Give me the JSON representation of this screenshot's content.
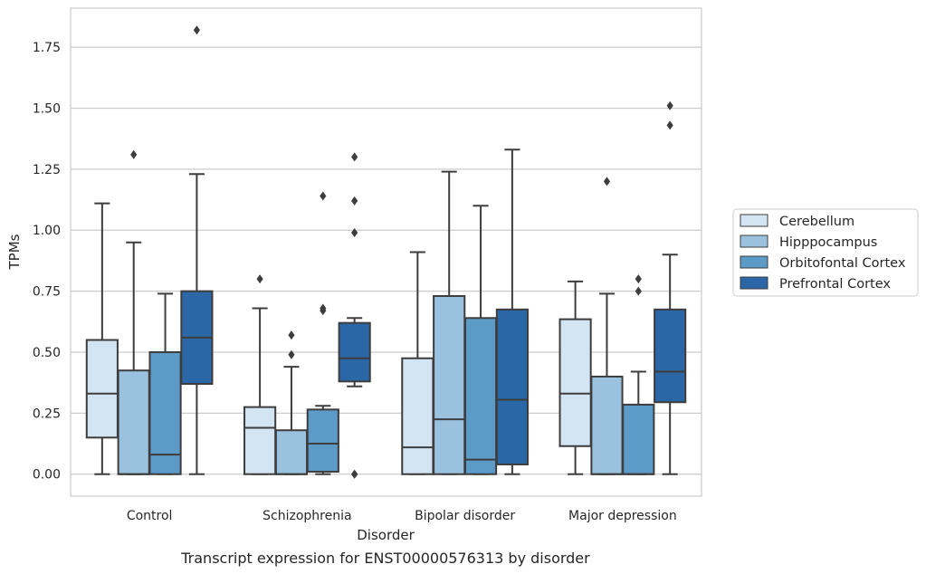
{
  "chart_data": {
    "type": "box",
    "xlabel": "Disorder",
    "ylabel": "TPMs",
    "caption": "Transcript expression for ENST00000576313 by disorder",
    "categories": [
      "Control",
      "Schizophrenia",
      "Bipolar disorder",
      "Major depression"
    ],
    "ylim": [
      -0.09,
      1.91
    ],
    "yticks": [
      "0.00",
      "0.25",
      "0.50",
      "0.75",
      "1.00",
      "1.25",
      "1.50",
      "1.75"
    ],
    "grid": "horizontal",
    "legend_position": "right",
    "series": [
      {
        "name": "Cerebellum",
        "color": "#d3e4f3",
        "boxes": [
          {
            "min": 0.0,
            "q1": 0.15,
            "median": 0.33,
            "q3": 0.55,
            "max": 1.11,
            "outliers": []
          },
          {
            "min": 0.0,
            "q1": 0.0,
            "median": 0.19,
            "q3": 0.275,
            "max": 0.68,
            "outliers": [
              0.8
            ]
          },
          {
            "min": 0.0,
            "q1": 0.0,
            "median": 0.11,
            "q3": 0.475,
            "max": 0.91,
            "outliers": []
          },
          {
            "min": 0.0,
            "q1": 0.115,
            "median": 0.33,
            "q3": 0.635,
            "max": 0.79,
            "outliers": []
          }
        ]
      },
      {
        "name": "Hipppocampus",
        "color": "#9ac2de",
        "boxes": [
          {
            "min": 0.0,
            "q1": 0.0,
            "median": 0.0,
            "q3": 0.425,
            "max": 0.95,
            "outliers": [
              1.31
            ]
          },
          {
            "min": 0.0,
            "q1": 0.0,
            "median": 0.0,
            "q3": 0.18,
            "max": 0.44,
            "outliers": [
              0.49,
              0.57
            ]
          },
          {
            "min": 0.0,
            "q1": 0.0,
            "median": 0.225,
            "q3": 0.73,
            "max": 1.24,
            "outliers": []
          },
          {
            "min": 0.0,
            "q1": 0.0,
            "median": 0.0,
            "q3": 0.4,
            "max": 0.74,
            "outliers": [
              1.2
            ]
          }
        ]
      },
      {
        "name": "Orbitofontal Cortex",
        "color": "#5c9ac8",
        "boxes": [
          {
            "min": 0.0,
            "q1": 0.0,
            "median": 0.08,
            "q3": 0.5,
            "max": 0.74,
            "outliers": []
          },
          {
            "min": 0.0,
            "q1": 0.01,
            "median": 0.125,
            "q3": 0.265,
            "max": 0.28,
            "outliers": [
              0.67,
              0.68,
              1.14
            ]
          },
          {
            "min": 0.0,
            "q1": 0.0,
            "median": 0.06,
            "q3": 0.64,
            "max": 1.1,
            "outliers": []
          },
          {
            "min": 0.0,
            "q1": 0.0,
            "median": 0.0,
            "q3": 0.285,
            "max": 0.42,
            "outliers": [
              0.75,
              0.8
            ]
          }
        ]
      },
      {
        "name": "Prefrontal Cortex",
        "color": "#2b67a7",
        "boxes": [
          {
            "min": 0.0,
            "q1": 0.37,
            "median": 0.56,
            "q3": 0.75,
            "max": 1.23,
            "outliers": [
              1.82
            ]
          },
          {
            "min": 0.36,
            "q1": 0.38,
            "median": 0.475,
            "q3": 0.62,
            "max": 0.64,
            "outliers": [
              0.0,
              0.0,
              0.99,
              1.12,
              1.3
            ]
          },
          {
            "min": 0.0,
            "q1": 0.04,
            "median": 0.305,
            "q3": 0.675,
            "max": 1.33,
            "outliers": []
          },
          {
            "min": 0.0,
            "q1": 0.295,
            "median": 0.42,
            "q3": 0.675,
            "max": 0.9,
            "outliers": [
              1.43,
              1.51
            ]
          }
        ]
      }
    ]
  }
}
